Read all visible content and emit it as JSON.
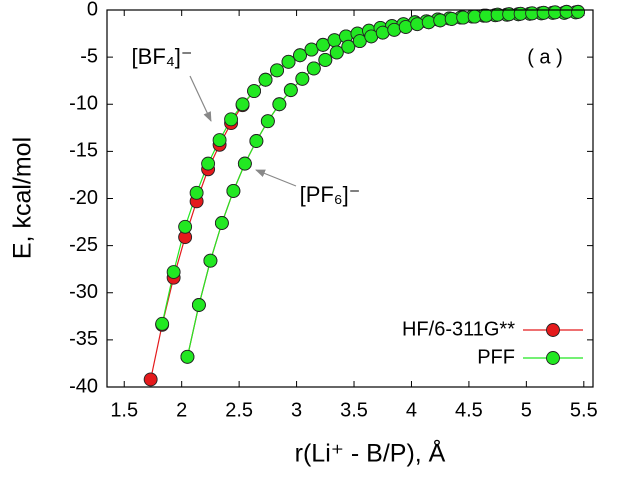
{
  "chart_data": {
    "type": "line",
    "x_label": "r(Li⁺ - B/P), Å",
    "y_label": "E, kcal/mol",
    "annotations": [
      "[BF₄]⁻",
      "[PF₆]⁻",
      "( a )"
    ],
    "xlim": [
      1.35,
      5.58
    ],
    "ylim": [
      -40,
      0
    ],
    "xticks": [
      1.5,
      2,
      2.5,
      3,
      3.5,
      4,
      4.5,
      5,
      5.5
    ],
    "yticks": [
      -40,
      -35,
      -30,
      -25,
      -20,
      -15,
      -10,
      -5,
      0
    ],
    "legend": "lower right",
    "series": [
      {
        "name": "HF/6-311G**",
        "color": "#e41a1c",
        "x": [
          1.73,
          1.83,
          1.93,
          2.03,
          2.13,
          2.23,
          2.33,
          2.43,
          2.53,
          2.63,
          2.73,
          2.83,
          2.93,
          3.03,
          3.13,
          3.23,
          3.33,
          3.43,
          3.53,
          3.63,
          3.73,
          3.83,
          3.93,
          4.03,
          4.13,
          4.23,
          4.33,
          4.43,
          4.53,
          4.63,
          4.73,
          4.83,
          4.93,
          5.03,
          5.13,
          5.23,
          5.33,
          5.43
        ],
        "values": [
          -39.2,
          -33.4,
          -28.4,
          -24.1,
          -20.3,
          -16.9,
          -14.3,
          -12.0,
          -10.1,
          -8.6,
          -7.4,
          -6.4,
          -5.5,
          -4.8,
          -4.2,
          -3.7,
          -3.2,
          -2.8,
          -2.5,
          -2.2,
          -1.9,
          -1.7,
          -1.5,
          -1.3,
          -1.2,
          -1.0,
          -0.9,
          -0.8,
          -0.7,
          -0.6,
          -0.55,
          -0.5,
          -0.45,
          -0.4,
          -0.35,
          -0.3,
          -0.3,
          -0.25
        ]
      },
      {
        "name": "PFF",
        "color": "#22e822",
        "x": [
          1.83,
          1.93,
          2.03,
          2.13,
          2.23,
          2.33,
          2.43,
          2.53,
          2.63,
          2.73,
          2.83,
          2.93,
          3.03,
          3.13,
          3.23,
          3.33,
          3.43,
          3.53,
          3.63,
          3.73,
          3.83,
          3.93,
          4.03,
          4.13,
          4.23,
          4.33,
          4.43,
          4.53,
          4.63,
          4.73,
          4.83,
          4.93,
          5.03,
          5.13,
          5.23,
          5.33,
          5.43
        ],
        "values": [
          -33.3,
          -27.8,
          -23.0,
          -19.4,
          -16.3,
          -13.8,
          -11.6,
          -10.0,
          -8.6,
          -7.4,
          -6.4,
          -5.5,
          -4.8,
          -4.2,
          -3.7,
          -3.2,
          -2.8,
          -2.5,
          -2.2,
          -1.9,
          -1.7,
          -1.5,
          -1.3,
          -1.2,
          -1.0,
          -0.9,
          -0.8,
          -0.7,
          -0.6,
          -0.55,
          -0.5,
          -0.45,
          -0.4,
          -0.35,
          -0.3,
          -0.3,
          -0.25
        ]
      },
      {
        "color": "#e41a1c",
        "x": [
          2.05,
          2.15,
          2.25,
          2.35,
          2.45,
          2.55,
          2.65,
          2.75,
          2.85,
          2.95,
          3.05,
          3.15,
          3.25,
          3.35,
          3.45,
          3.55,
          3.65,
          3.75,
          3.85,
          3.95,
          4.05,
          4.15,
          4.25,
          4.35,
          4.45,
          4.55,
          4.65,
          4.75,
          4.85,
          4.95,
          5.05,
          5.15,
          5.25,
          5.35,
          5.45
        ],
        "values": [
          -36.8,
          -31.3,
          -26.6,
          -22.6,
          -19.2,
          -16.3,
          -13.9,
          -11.8,
          -10.0,
          -8.5,
          -7.3,
          -6.2,
          -5.3,
          -4.5,
          -3.9,
          -3.3,
          -2.8,
          -2.4,
          -2.1,
          -1.8,
          -1.5,
          -1.3,
          -1.1,
          -0.95,
          -0.8,
          -0.7,
          -0.6,
          -0.5,
          -0.45,
          -0.4,
          -0.35,
          -0.3,
          -0.25,
          -0.2,
          -0.2
        ]
      },
      {
        "color": "#22e822",
        "x": [
          2.05,
          2.15,
          2.25,
          2.35,
          2.45,
          2.55,
          2.65,
          2.75,
          2.85,
          2.95,
          3.05,
          3.15,
          3.25,
          3.35,
          3.45,
          3.55,
          3.65,
          3.75,
          3.85,
          3.95,
          4.05,
          4.15,
          4.25,
          4.35,
          4.45,
          4.55,
          4.65,
          4.75,
          4.85,
          4.95,
          5.05,
          5.15,
          5.25,
          5.35,
          5.45
        ],
        "values": [
          -36.8,
          -31.3,
          -26.6,
          -22.6,
          -19.2,
          -16.3,
          -13.9,
          -11.8,
          -10.0,
          -8.5,
          -7.3,
          -6.2,
          -5.3,
          -4.5,
          -3.9,
          -3.3,
          -2.8,
          -2.4,
          -2.1,
          -1.8,
          -1.5,
          -1.3,
          -1.1,
          -0.95,
          -0.8,
          -0.7,
          -0.6,
          -0.5,
          -0.45,
          -0.4,
          -0.35,
          -0.3,
          -0.25,
          -0.2,
          -0.2
        ]
      }
    ]
  }
}
